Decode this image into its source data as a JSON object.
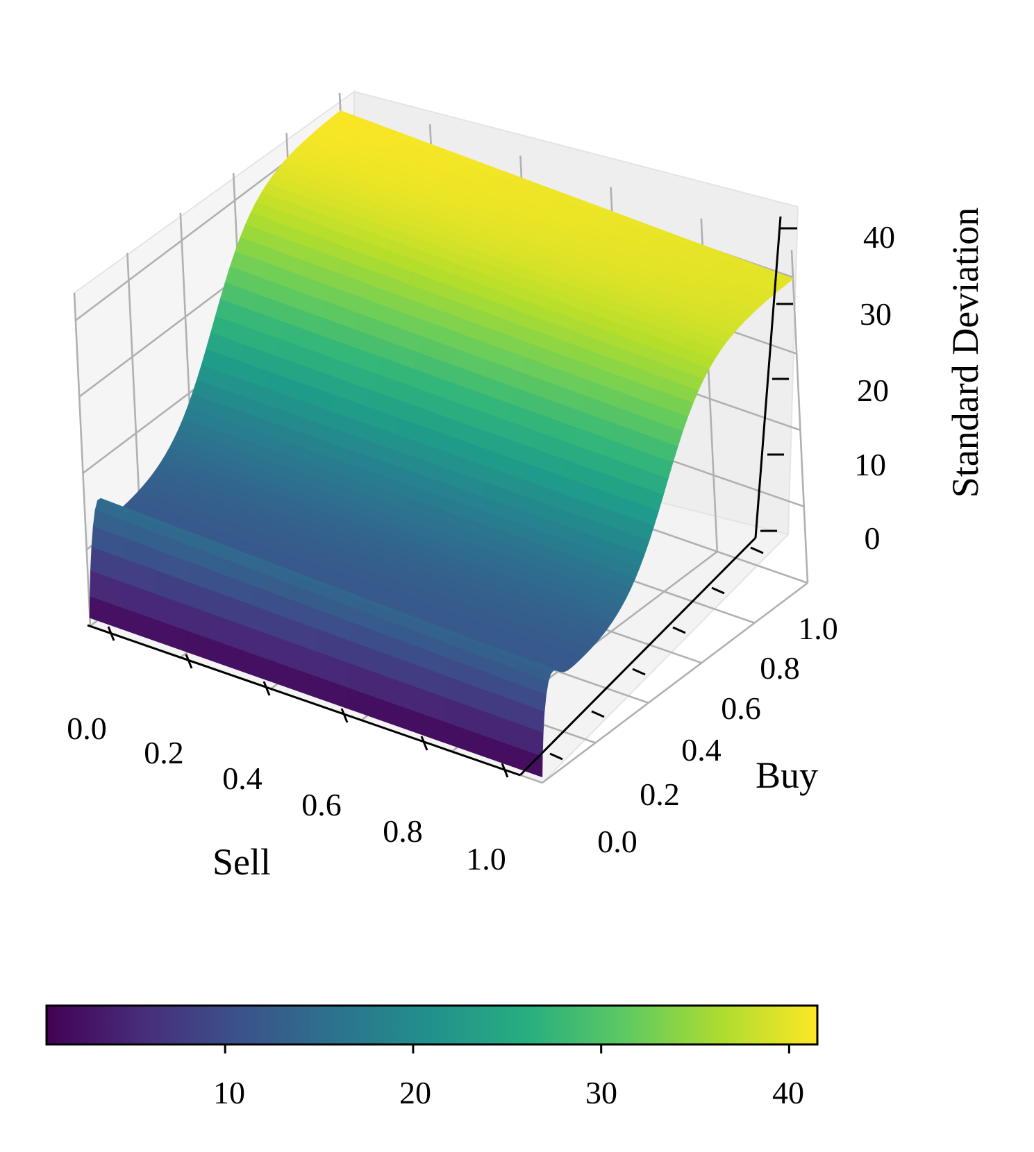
{
  "chart_data": {
    "type": "surface",
    "colormap": "viridis",
    "grid": true,
    "x_axis": {
      "label": "Sell",
      "range": [
        0.0,
        1.0
      ],
      "ticks": [
        "0.0",
        "0.2",
        "0.4",
        "0.6",
        "0.8",
        "1.0"
      ]
    },
    "y_axis": {
      "label": "Buy",
      "range": [
        0.0,
        1.0
      ],
      "ticks": [
        "0.0",
        "0.2",
        "0.4",
        "0.6",
        "0.8",
        "1.0"
      ]
    },
    "z_axis": {
      "label": "Standard Deviation",
      "range": [
        0,
        40
      ],
      "ticks": [
        "0",
        "10",
        "20",
        "30",
        "40"
      ]
    },
    "colorbar": {
      "orientation": "horizontal",
      "placement": "bottom",
      "range": [
        0.5,
        41.5
      ],
      "ticks": [
        "10",
        "20",
        "30",
        "40"
      ]
    },
    "surface_samples": [
      {
        "sell": 0.0,
        "buy": 0.0,
        "std": 0.5
      },
      {
        "sell": 0.0,
        "buy": 0.05,
        "std": 11.5
      },
      {
        "sell": 0.0,
        "buy": 0.25,
        "std": 13
      },
      {
        "sell": 0.0,
        "buy": 0.5,
        "std": 20
      },
      {
        "sell": 0.0,
        "buy": 0.75,
        "std": 33
      },
      {
        "sell": 0.0,
        "buy": 1.0,
        "std": 39
      },
      {
        "sell": 1.0,
        "buy": 0.0,
        "std": 0.5
      },
      {
        "sell": 1.0,
        "buy": 0.5,
        "std": 21
      },
      {
        "sell": 1.0,
        "buy": 1.0,
        "std": 41.5
      }
    ]
  }
}
